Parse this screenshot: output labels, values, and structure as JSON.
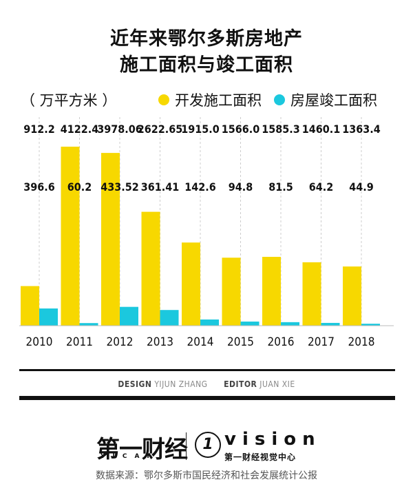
{
  "title_line1": "近年来鄂尔多斯房地产",
  "title_line2": "施工面积与竣工面积",
  "unit": "（ 万平方米 ）",
  "colors": {
    "series1": "#f7d800",
    "series2": "#1bc8de"
  },
  "chart_data": {
    "type": "bar",
    "categories": [
      "2010",
      "2011",
      "2012",
      "2013",
      "2014",
      "2015",
      "2016",
      "2017",
      "2018"
    ],
    "series": [
      {
        "name": "开发施工面积",
        "values": [
          912.2,
          4122.4,
          3978.06,
          2622.65,
          1915.0,
          1566.0,
          1585.3,
          1460.1,
          1363.4
        ],
        "labels": [
          "912.2",
          "4122.4",
          "3978.06",
          "2622.65",
          "1915.0",
          "1566.0",
          "1585.3",
          "1460.1",
          "1363.4"
        ]
      },
      {
        "name": "房屋竣工面积",
        "values": [
          396.6,
          60.2,
          433.52,
          361.41,
          142.6,
          94.8,
          81.5,
          64.2,
          44.9
        ],
        "labels": [
          "396.6",
          "60.2",
          "433.52",
          "361.41",
          "142.6",
          "94.8",
          "81.5",
          "64.2",
          "44.9"
        ]
      }
    ],
    "ylim": [
      0,
      4122.4
    ],
    "grid": true
  },
  "credits": {
    "design_label": "DESIGN",
    "design_name": "YIJUN ZHANG",
    "editor_label": "EDITOR",
    "editor_name": "JUAN XIE"
  },
  "logos": {
    "yicai_name": "第一财经",
    "yicai_sub": "YICAI",
    "vision_mark": "1",
    "vision_word": "vision",
    "vision_sub": "第一财经视觉中心"
  },
  "source": "数据来源：鄂尔多斯市国民经济和社会发展统计公报"
}
